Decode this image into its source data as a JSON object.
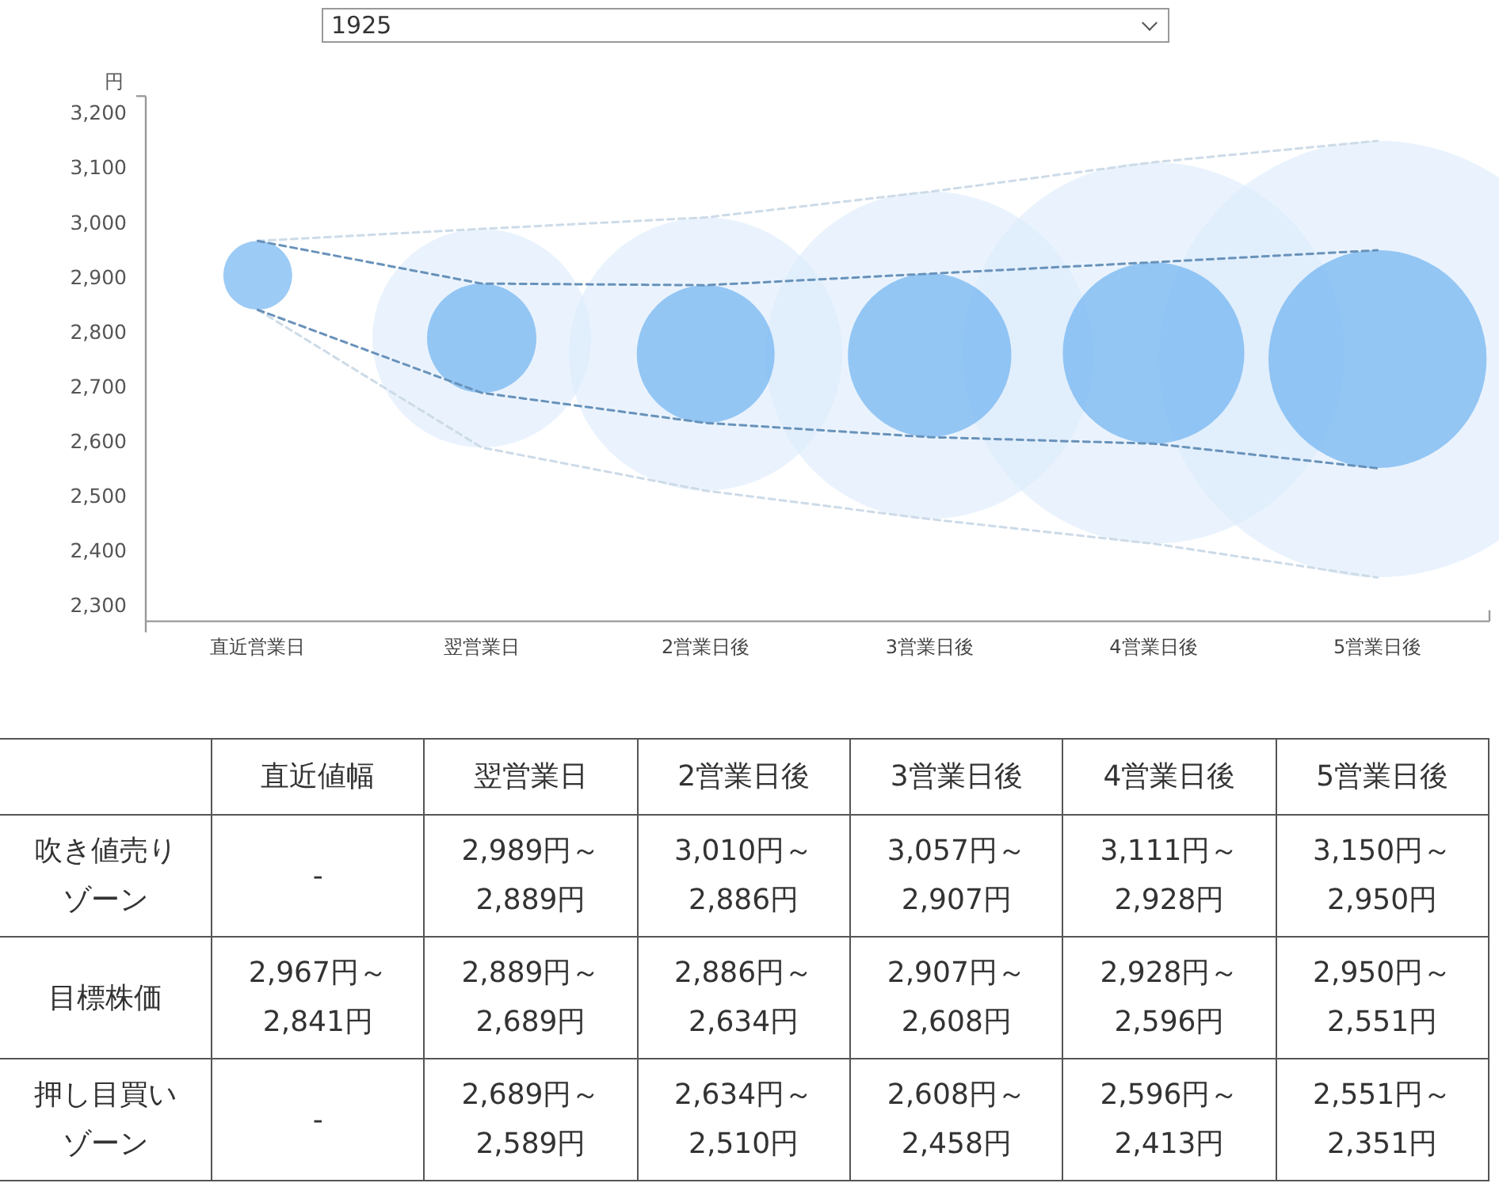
{
  "chart_data": [
    {
      "type": "bubble",
      "title": "1925",
      "ylabel": "円",
      "categories": [
        "直近営業日",
        "翌営業日",
        "2営業日後",
        "3営業日後",
        "4営業日後",
        "5営業日後"
      ],
      "ylim": [
        2271,
        3232
      ],
      "yticks": [
        {
          "value": 2300,
          "label": "2,300"
        },
        {
          "value": 2400,
          "label": "2,400"
        },
        {
          "value": 2500,
          "label": "2,500"
        },
        {
          "value": 2600,
          "label": "2,600"
        },
        {
          "value": 2700,
          "label": "2,700"
        },
        {
          "value": 2800,
          "label": "2,800"
        },
        {
          "value": 2900,
          "label": "2,900"
        },
        {
          "value": 3000,
          "label": "3,000"
        },
        {
          "value": 3100,
          "label": "3,100"
        },
        {
          "value": 3200,
          "label": "3,200"
        }
      ],
      "line_style": "dashed",
      "series": [
        {
          "type": "bubble",
          "color": "#d9eafc",
          "values": [
            null,
            2789,
            2760,
            2758,
            2762,
            2751
          ],
          "sizes": [
            null,
            0.2506,
            0.3916,
            0.562,
            0.7632,
            1
          ]
        },
        {
          "type": "bubble",
          "color": "#5aa8ee",
          "values": [
            2904,
            2789,
            2760,
            2758,
            2762,
            2751
          ],
          "sizes": [
            0.0249,
            0.0627,
            0.0995,
            0.14,
            0.1727,
            0.2494
          ]
        },
        {
          "type": "line",
          "color": "#cddbe8",
          "values": [
            2967,
            2989,
            3010,
            3057,
            3111,
            3150
          ]
        },
        {
          "type": "line",
          "color": "#cddbe8",
          "values": [
            2841,
            2589,
            2510,
            2458,
            2413,
            2351
          ]
        },
        {
          "type": "line",
          "color": "#6892ba",
          "values": [
            2967,
            2889,
            2886,
            2907,
            2928,
            2950
          ]
        },
        {
          "type": "line",
          "color": "#6892ba",
          "values": [
            2841,
            2689,
            2634,
            2608,
            2596,
            2551
          ]
        }
      ]
    },
    {
      "type": "heatmap",
      "categories": [
        "直近値幅",
        "翌営業日",
        "2営業日後",
        "3営業日後",
        "4営業日後",
        "5営業日後"
      ],
      "y_categories": [
        "吹き値売りゾーン",
        "目標株価",
        "押し目買いゾーン"
      ],
      "cells": [
        [
          null,
          null,
          null,
          null,
          null,
          null
        ],
        [
          null,
          null,
          null,
          null,
          null,
          null
        ],
        [
          null,
          null,
          null,
          null,
          null,
          null
        ]
      ],
      "cell_labels": [
        [
          "-",
          "2,989円～\n2,889円",
          "3,010円～\n2,886円",
          "3,057円～\n2,907円",
          "3,111円～\n2,928円",
          "3,150円～\n2,950円"
        ],
        [
          "2,967円～\n2,841円",
          "2,889円～\n2,689円",
          "2,886円～\n2,634円",
          "2,907円～\n2,608円",
          "2,928円～\n2,596円",
          "2,950円～\n2,551円"
        ],
        [
          "-",
          "2,689円～\n2,589円",
          "2,634円～\n2,510円",
          "2,608円～\n2,458円",
          "2,596円～\n2,413円",
          "2,551円～\n2,351円"
        ]
      ]
    }
  ]
}
